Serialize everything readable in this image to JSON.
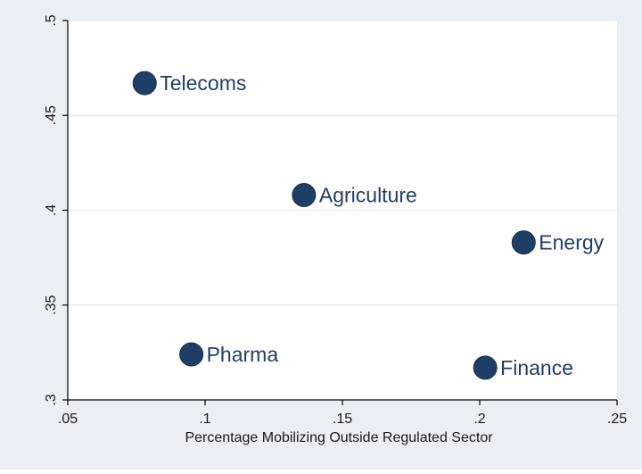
{
  "chart_data": {
    "type": "scatter",
    "title": "",
    "xlabel": "Percentage Mobilizing Outside Regulated Sector",
    "ylabel": "",
    "xlim": [
      0.05,
      0.25
    ],
    "ylim": [
      0.3,
      0.5
    ],
    "x_ticks": [
      {
        "value": 0.05,
        "label": ".05"
      },
      {
        "value": 0.1,
        "label": ".1"
      },
      {
        "value": 0.15,
        "label": ".15"
      },
      {
        "value": 0.2,
        "label": ".2"
      },
      {
        "value": 0.25,
        "label": ".25"
      }
    ],
    "y_ticks": [
      {
        "value": 0.3,
        "label": ".3"
      },
      {
        "value": 0.35,
        "label": ".35"
      },
      {
        "value": 0.4,
        "label": ".4"
      },
      {
        "value": 0.45,
        "label": ".45"
      },
      {
        "value": 0.5,
        "label": ".5"
      }
    ],
    "grid": "horizontal",
    "points": [
      {
        "label": "Telecoms",
        "x": 0.078,
        "y": 0.467
      },
      {
        "label": "Agriculture",
        "x": 0.136,
        "y": 0.408
      },
      {
        "label": "Energy",
        "x": 0.216,
        "y": 0.383
      },
      {
        "label": "Pharma",
        "x": 0.095,
        "y": 0.324
      },
      {
        "label": "Finance",
        "x": 0.202,
        "y": 0.317
      }
    ]
  },
  "colors": {
    "outer_background": "#e9eff2",
    "plot_background": "#ffffff",
    "gridline": "#e4eaee",
    "marker": "#1f3e66",
    "marker_label": "#1f3e66",
    "axis_text": "#1a1a1a"
  }
}
